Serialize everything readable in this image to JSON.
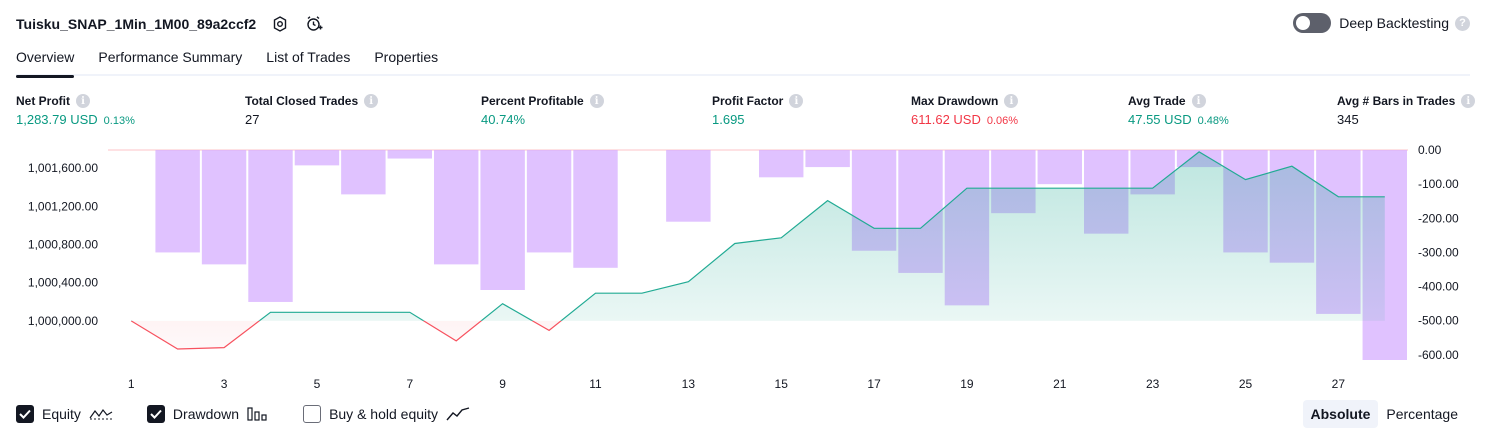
{
  "header": {
    "title": "Tuisku_SNAP_1Min_1M00_89a2ccf2",
    "deep_backtesting_label": "Deep Backtesting",
    "deep_backtesting_enabled": false
  },
  "tabs": [
    {
      "label": "Overview",
      "active": true
    },
    {
      "label": "Performance Summary",
      "active": false
    },
    {
      "label": "List of Trades",
      "active": false
    },
    {
      "label": "Properties",
      "active": false
    }
  ],
  "metrics": [
    {
      "label": "Net Profit",
      "value": "1,283.79 USD",
      "sub": "0.13%",
      "color": "#089981"
    },
    {
      "label": "Total Closed Trades",
      "value": "27",
      "sub": "",
      "color": "#131722"
    },
    {
      "label": "Percent Profitable",
      "value": "40.74%",
      "sub": "",
      "color": "#089981"
    },
    {
      "label": "Profit Factor",
      "value": "1.695",
      "sub": "",
      "color": "#089981"
    },
    {
      "label": "Max Drawdown",
      "value": "611.62 USD",
      "sub": "0.06%",
      "color": "#f23645"
    },
    {
      "label": "Avg Trade",
      "value": "47.55 USD",
      "sub": "0.48%",
      "color": "#089981"
    },
    {
      "label": "Avg # Bars in Trades",
      "value": "345",
      "sub": "",
      "color": "#131722"
    }
  ],
  "chart_data": {
    "type": "line",
    "x": [
      1,
      2,
      3,
      4,
      5,
      6,
      7,
      8,
      9,
      10,
      11,
      12,
      13,
      14,
      15,
      16,
      17,
      18,
      19,
      20,
      21,
      22,
      23,
      24,
      25,
      26,
      27,
      28
    ],
    "x_tick_labels": [
      "1",
      "3",
      "5",
      "7",
      "9",
      "11",
      "13",
      "15",
      "17",
      "19",
      "21",
      "23",
      "25",
      "27"
    ],
    "series": [
      {
        "kind": "equity-line",
        "baseline": 1000000,
        "values": [
          1000000,
          999705,
          999720,
          1000090,
          1000090,
          1000090,
          1000090,
          999790,
          1000180,
          999900,
          1000290,
          1000290,
          1000410,
          1000810,
          1000870,
          1001260,
          1000970,
          1000970,
          1001390,
          1001390,
          1001390,
          1001390,
          1001390,
          1001770,
          1001480,
          1001620,
          1001300,
          1001300
        ]
      },
      {
        "kind": "drawdown-bars",
        "values": [
          0,
          -300,
          -335,
          -445,
          -45,
          -130,
          -25,
          -335,
          -410,
          -300,
          -345,
          0,
          -210,
          0,
          -80,
          -50,
          -295,
          -360,
          -455,
          -185,
          -100,
          -245,
          -130,
          -50,
          -300,
          -330,
          -480,
          -615
        ]
      }
    ],
    "y_left_ticks": [
      "1,001,600.00",
      "1,001,200.00",
      "1,000,800.00",
      "1,000,400.00",
      "1,000,000.00"
    ],
    "y_left_tick_values": [
      1001600,
      1001200,
      1000800,
      1000400,
      1000000
    ],
    "y_right_ticks": [
      "0.00",
      "-100.00",
      "-200.00",
      "-300.00",
      "-400.00",
      "-500.00",
      "-600.00"
    ],
    "y_right_tick_values": [
      0,
      -100,
      -200,
      -300,
      -400,
      -500,
      -600
    ],
    "ylim_left": [
      999590,
      1001790
    ],
    "ylim_right": [
      -615,
      0
    ],
    "colors": {
      "equity_up": "#22ab94",
      "equity_down": "#f7525f",
      "equity_fill_up": "#22ab94",
      "equity_fill_down": "#f23645",
      "drawdown_bar": "#d6adff"
    }
  },
  "legend": [
    {
      "label": "Equity",
      "checked": true,
      "icon": "equity-line-icon"
    },
    {
      "label": "Drawdown",
      "checked": true,
      "icon": "drawdown-bars-icon"
    },
    {
      "label": "Buy & hold equity",
      "checked": false,
      "icon": "buy-hold-line-icon"
    }
  ],
  "mode": {
    "absolute": "Absolute",
    "percentage": "Percentage",
    "active": "absolute"
  }
}
